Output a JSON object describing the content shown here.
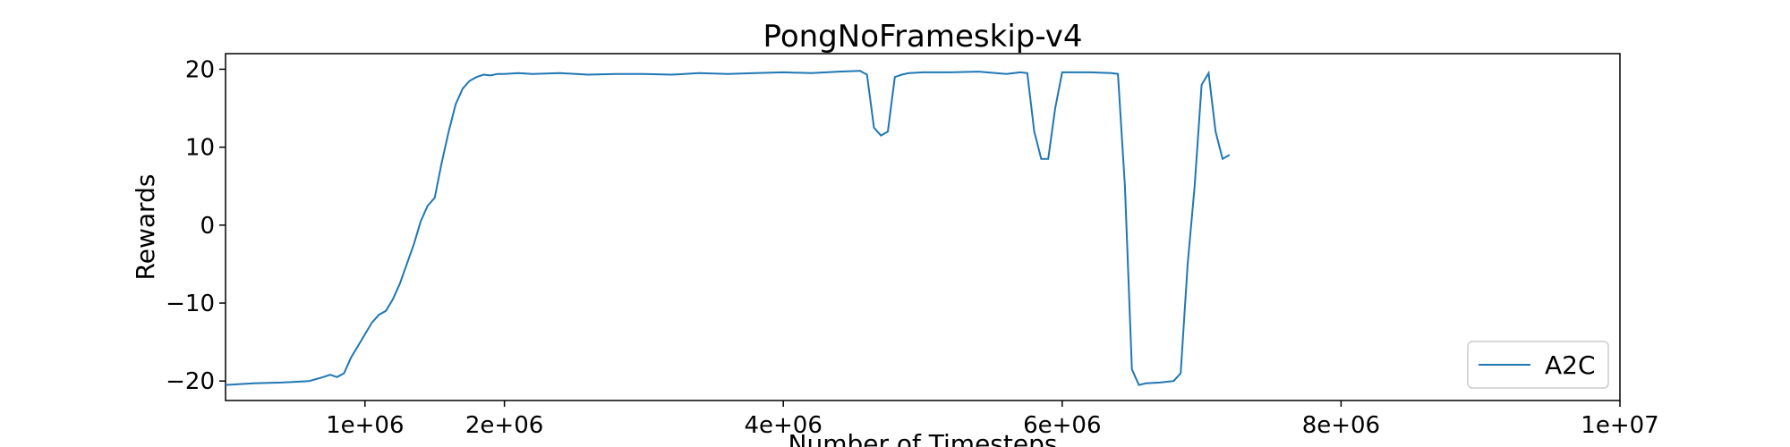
{
  "chart_data": {
    "type": "line",
    "title": "PongNoFrameskip-v4",
    "xlabel": "Number of Timesteps",
    "ylabel": "Rewards",
    "xlim": [
      0,
      10000000
    ],
    "ylim": [
      -22.5,
      22
    ],
    "x_ticks": [
      {
        "value": 1000000,
        "label": "1e+06"
      },
      {
        "value": 2000000,
        "label": "2e+06"
      },
      {
        "value": 4000000,
        "label": "4e+06"
      },
      {
        "value": 6000000,
        "label": "6e+06"
      },
      {
        "value": 8000000,
        "label": "8e+06"
      },
      {
        "value": 10000000,
        "label": "1e+07"
      }
    ],
    "y_ticks": [
      {
        "value": 20,
        "label": "20"
      },
      {
        "value": 10,
        "label": "10"
      },
      {
        "value": 0,
        "label": "0"
      },
      {
        "value": -10,
        "label": "−10"
      },
      {
        "value": -20,
        "label": "−20"
      }
    ],
    "grid": false,
    "legend_position": "bottom-right",
    "series": [
      {
        "name": "A2C",
        "color": "#1f77b4",
        "x": [
          0,
          200000,
          400000,
          500000,
          600000,
          700000,
          750000,
          800000,
          850000,
          900000,
          950000,
          1000000,
          1050000,
          1100000,
          1150000,
          1200000,
          1250000,
          1300000,
          1350000,
          1400000,
          1450000,
          1500000,
          1550000,
          1600000,
          1650000,
          1700000,
          1750000,
          1800000,
          1850000,
          1900000,
          1950000,
          2000000,
          2100000,
          2200000,
          2400000,
          2600000,
          2800000,
          3000000,
          3200000,
          3400000,
          3600000,
          3800000,
          4000000,
          4200000,
          4400000,
          4550000,
          4600000,
          4650000,
          4700000,
          4750000,
          4800000,
          4850000,
          4900000,
          5000000,
          5200000,
          5400000,
          5600000,
          5700000,
          5750000,
          5800000,
          5850000,
          5900000,
          5950000,
          6000000,
          6200000,
          6350000,
          6400000,
          6450000,
          6500000,
          6550000,
          6600000,
          6700000,
          6800000,
          6850000,
          6900000,
          6950000,
          7000000,
          7050000,
          7100000,
          7150000,
          7200000
        ],
        "values": [
          -20.5,
          -20.3,
          -20.2,
          -20.1,
          -20.0,
          -19.5,
          -19.2,
          -19.5,
          -19.0,
          -17.0,
          -15.5,
          -14.0,
          -12.5,
          -11.5,
          -11.0,
          -9.5,
          -7.5,
          -5.0,
          -2.5,
          0.5,
          2.5,
          3.5,
          8.0,
          12.0,
          15.5,
          17.5,
          18.5,
          19.0,
          19.3,
          19.2,
          19.4,
          19.4,
          19.5,
          19.4,
          19.5,
          19.3,
          19.4,
          19.4,
          19.3,
          19.5,
          19.4,
          19.5,
          19.6,
          19.5,
          19.7,
          19.8,
          19.3,
          12.5,
          11.5,
          12.0,
          19.0,
          19.3,
          19.5,
          19.6,
          19.6,
          19.7,
          19.4,
          19.6,
          19.5,
          12.0,
          8.5,
          8.5,
          15.0,
          19.6,
          19.6,
          19.5,
          19.4,
          5.0,
          -18.5,
          -20.5,
          -20.3,
          -20.2,
          -20.0,
          -19.0,
          -5.0,
          5.0,
          18.0,
          19.5,
          12.0,
          8.5,
          9.0
        ]
      }
    ]
  }
}
